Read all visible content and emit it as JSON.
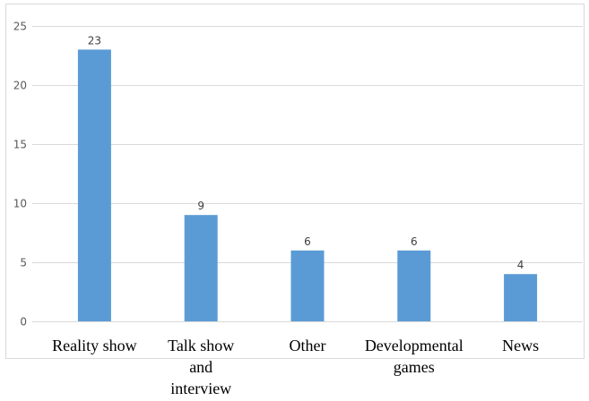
{
  "chart_data": {
    "type": "bar",
    "categories": [
      [
        "Reality show"
      ],
      [
        "Talk show",
        "and",
        "interview"
      ],
      [
        "Other"
      ],
      [
        "Developmental",
        "games"
      ],
      [
        "News"
      ]
    ],
    "values": [
      23,
      9,
      6,
      6,
      4
    ],
    "data_labels": [
      "23",
      "9",
      "6",
      "6",
      "4"
    ],
    "ylim": [
      0,
      25
    ],
    "yticks": [
      "0",
      "5",
      "10",
      "15",
      "20",
      "25"
    ],
    "grid": true,
    "legend": "none",
    "title": "",
    "xlabel": "",
    "ylabel": "",
    "bar_color": "#5b9bd5",
    "grid_color": "#d9d9d9"
  }
}
